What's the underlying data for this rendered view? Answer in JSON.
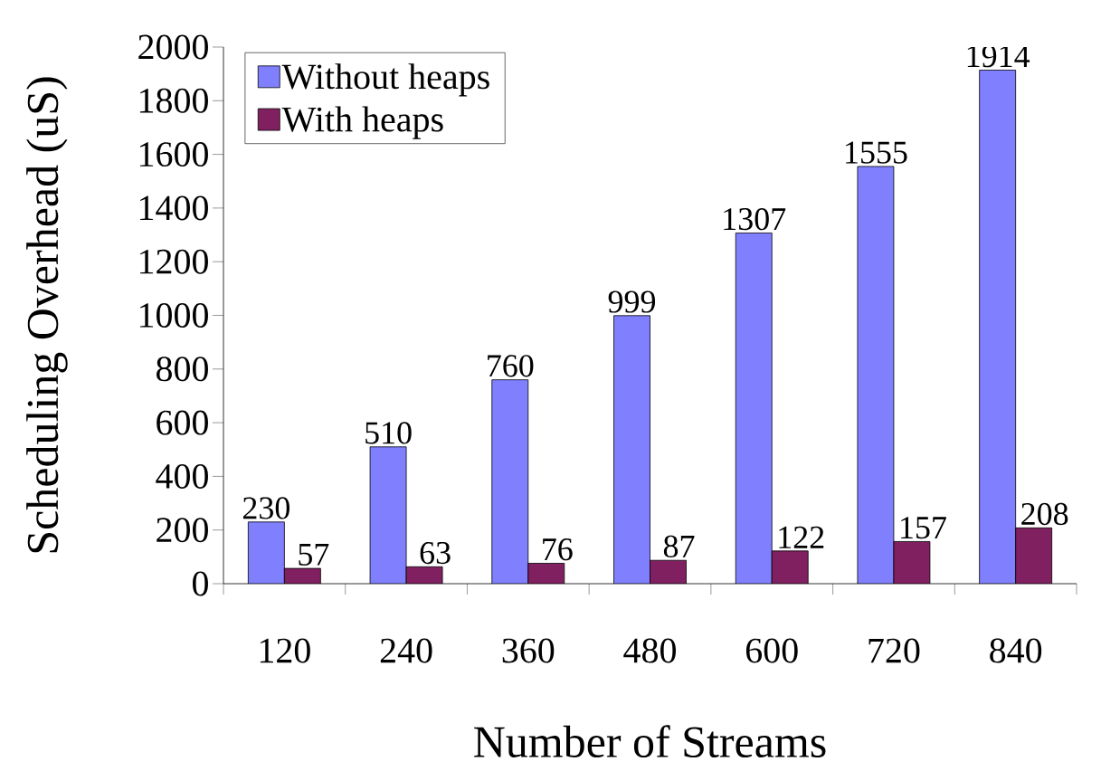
{
  "chart_data": {
    "type": "bar",
    "xlabel": "Number of Streams",
    "ylabel": "Scheduling Overhead (uS)",
    "categories": [
      "120",
      "240",
      "360",
      "480",
      "600",
      "720",
      "840"
    ],
    "series": [
      {
        "name": "Without heaps",
        "color": "#8080ff",
        "values": [
          230,
          510,
          760,
          999,
          1307,
          1555,
          1914
        ]
      },
      {
        "name": "With heaps",
        "color": "#802060",
        "values": [
          57,
          63,
          76,
          87,
          122,
          157,
          208
        ]
      }
    ],
    "ylim": [
      0,
      2000
    ],
    "yticks": [
      0,
      200,
      400,
      600,
      800,
      1000,
      1200,
      1400,
      1600,
      1800,
      2000
    ],
    "data_labels": true,
    "legend": "top left",
    "grid": false
  }
}
